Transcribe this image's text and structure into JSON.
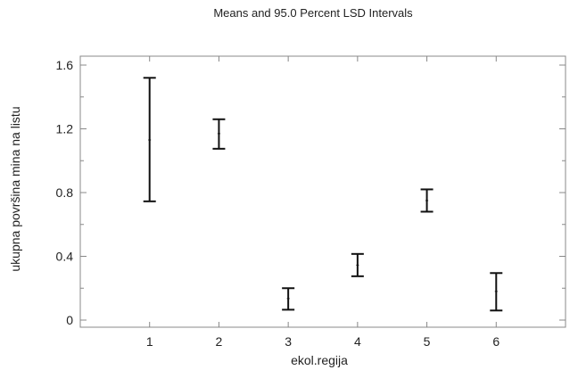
{
  "chart_data": {
    "type": "errorbar",
    "title": "Means and 95.0 Percent LSD Intervals",
    "xlabel": "ekol.regija",
    "ylabel": "ukupna površina mina na listu",
    "categories": [
      "1",
      "2",
      "3",
      "4",
      "5",
      "6"
    ],
    "xlim": [
      0,
      7
    ],
    "ylim": [
      0,
      1.6
    ],
    "yticks": [
      0,
      0.4,
      0.8,
      1.2,
      1.6
    ],
    "ytick_labels": [
      "0",
      "0.4",
      "0.8",
      "1.2",
      "1.6"
    ],
    "grid": false,
    "series": [
      {
        "x": [
          1,
          2,
          3,
          4,
          5,
          6
        ],
        "mean": [
          1.13,
          1.17,
          0.135,
          0.345,
          0.75,
          0.18
        ],
        "lower": [
          0.745,
          1.075,
          0.065,
          0.275,
          0.68,
          0.06
        ],
        "upper": [
          1.52,
          1.26,
          0.2,
          0.415,
          0.82,
          0.295
        ]
      }
    ]
  }
}
